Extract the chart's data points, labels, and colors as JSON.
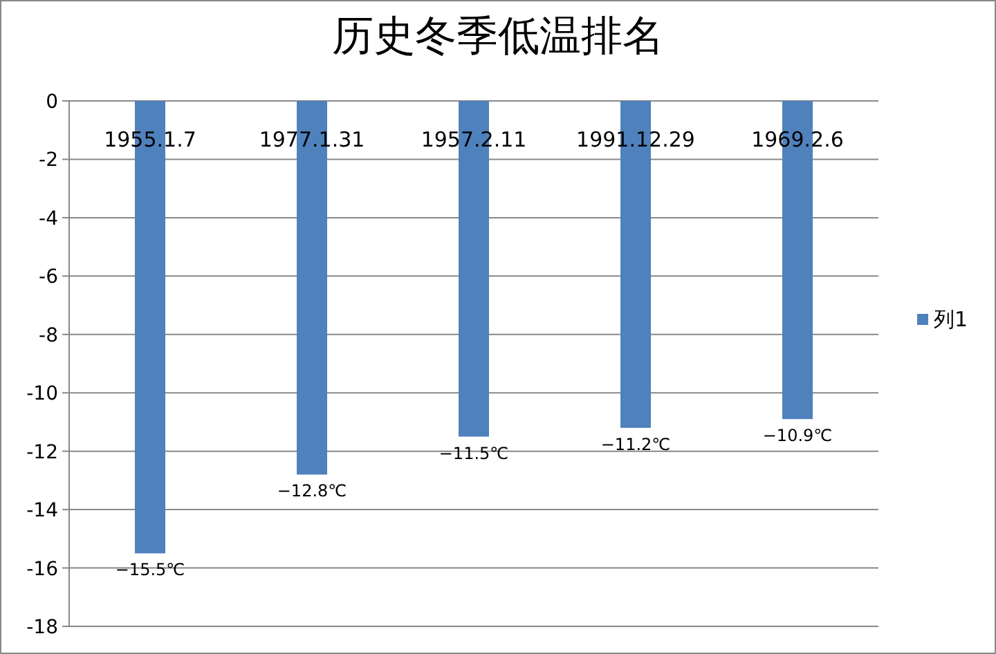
{
  "chart_data": {
    "type": "bar",
    "title": "历史冬季低温排名",
    "categories": [
      "1955.1.7",
      "1977.1.31",
      "1957.2.11",
      "1991.12.29",
      "1969.2.6"
    ],
    "series": [
      {
        "name": "列1",
        "color": "#4f81bd",
        "values": [
          -15.5,
          -12.8,
          -11.5,
          -11.2,
          -10.9
        ],
        "value_labels": [
          "−15.5℃",
          "−12.8℃",
          "−11.5℃",
          "−11.2℃",
          "−10.9℃"
        ]
      }
    ],
    "ylim": [
      -18,
      0
    ],
    "yticks": [
      0,
      -2,
      -4,
      -6,
      -8,
      -10,
      -12,
      -14,
      -16,
      -18
    ],
    "grid": "y",
    "legend": "right"
  }
}
